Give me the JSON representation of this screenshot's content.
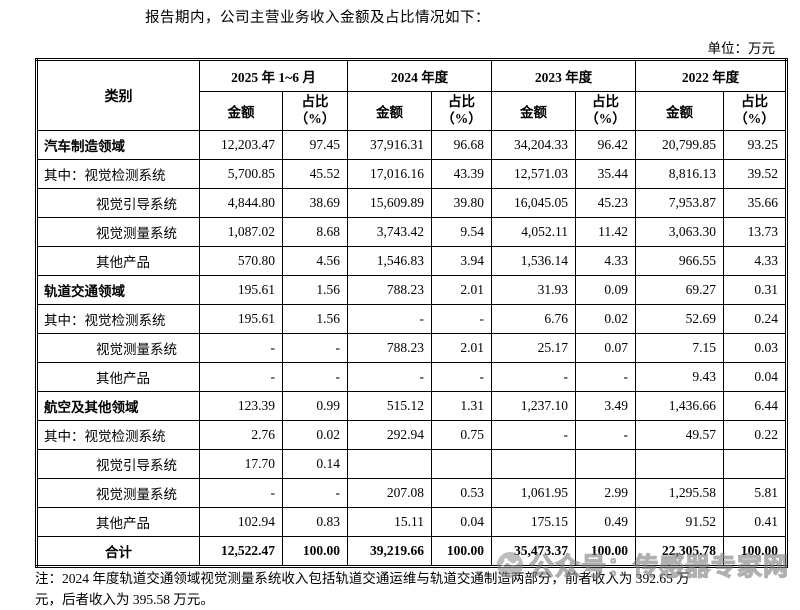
{
  "page": {
    "intro": "报告期内，公司主营业务收入金额及占比情况如下：",
    "unit_label": "单位：万元",
    "note_line1": "注：2024 年度轨道交通领域视觉测量系统收入包括轨道交通运维与轨道交通制造两部分，前者收入为 392.65 万",
    "note_line2": "元，后者收入为 395.58 万元。"
  },
  "watermark": {
    "text": "公众号：传感器专家网",
    "color": "#7d7d7d"
  },
  "table": {
    "category_header": "类别",
    "amount_label": "金额",
    "ratio_label": "占比",
    "ratio_paren": "（%）",
    "col_groups": [
      {
        "label": "2025 年 1~6 月"
      },
      {
        "label": "2024 年度"
      },
      {
        "label": "2023 年度"
      },
      {
        "label": "2022 年度"
      }
    ],
    "rows": [
      {
        "cls": "section",
        "label": "汽车制造领域",
        "values": [
          "12,203.47",
          "97.45",
          "37,916.31",
          "96.68",
          "34,204.33",
          "96.42",
          "20,799.85",
          "93.25"
        ]
      },
      {
        "cls": "sub",
        "label": "其中：视觉检测系统",
        "values": [
          "5,700.85",
          "45.52",
          "17,016.16",
          "43.39",
          "12,571.03",
          "35.44",
          "8,816.13",
          "39.52"
        ]
      },
      {
        "cls": "indent",
        "label": "视觉引导系统",
        "values": [
          "4,844.80",
          "38.69",
          "15,609.89",
          "39.80",
          "16,045.05",
          "45.23",
          "7,953.87",
          "35.66"
        ]
      },
      {
        "cls": "indent",
        "label": "视觉测量系统",
        "values": [
          "1,087.02",
          "8.68",
          "3,743.42",
          "9.54",
          "4,052.11",
          "11.42",
          "3,063.30",
          "13.73"
        ]
      },
      {
        "cls": "indent",
        "label": "其他产品",
        "values": [
          "570.80",
          "4.56",
          "1,546.83",
          "3.94",
          "1,536.14",
          "4.33",
          "966.55",
          "4.33"
        ]
      },
      {
        "cls": "section",
        "label": "轨道交通领域",
        "values": [
          "195.61",
          "1.56",
          "788.23",
          "2.01",
          "31.93",
          "0.09",
          "69.27",
          "0.31"
        ]
      },
      {
        "cls": "sub",
        "label": "其中：视觉检测系统",
        "values": [
          "195.61",
          "1.56",
          "-",
          "-",
          "6.76",
          "0.02",
          "52.69",
          "0.24"
        ]
      },
      {
        "cls": "indent",
        "label": "视觉测量系统",
        "values": [
          "-",
          "-",
          "788.23",
          "2.01",
          "25.17",
          "0.07",
          "7.15",
          "0.03"
        ]
      },
      {
        "cls": "indent",
        "label": "其他产品",
        "values": [
          "-",
          "-",
          "-",
          "-",
          "-",
          "-",
          "9.43",
          "0.04"
        ]
      },
      {
        "cls": "section",
        "label": "航空及其他领域",
        "values": [
          "123.39",
          "0.99",
          "515.12",
          "1.31",
          "1,237.10",
          "3.49",
          "1,436.66",
          "6.44"
        ]
      },
      {
        "cls": "sub",
        "label": "其中：视觉检测系统",
        "values": [
          "2.76",
          "0.02",
          "292.94",
          "0.75",
          "-",
          "-",
          "49.57",
          "0.22"
        ]
      },
      {
        "cls": "indent",
        "label": "视觉引导系统",
        "values": [
          "17.70",
          "0.14",
          "",
          "",
          "",
          "",
          "",
          ""
        ]
      },
      {
        "cls": "indent",
        "label": "视觉测量系统",
        "values": [
          "-",
          "-",
          "207.08",
          "0.53",
          "1,061.95",
          "2.99",
          "1,295.58",
          "5.81"
        ]
      },
      {
        "cls": "indent",
        "label": "其他产品",
        "values": [
          "102.94",
          "0.83",
          "15.11",
          "0.04",
          "175.15",
          "0.49",
          "91.52",
          "0.41"
        ]
      },
      {
        "cls": "total",
        "label": "合计",
        "values": [
          "12,522.47",
          "100.00",
          "39,219.66",
          "100.00",
          "35,473.37",
          "100.00",
          "22,305.78",
          "100.00"
        ]
      }
    ]
  }
}
